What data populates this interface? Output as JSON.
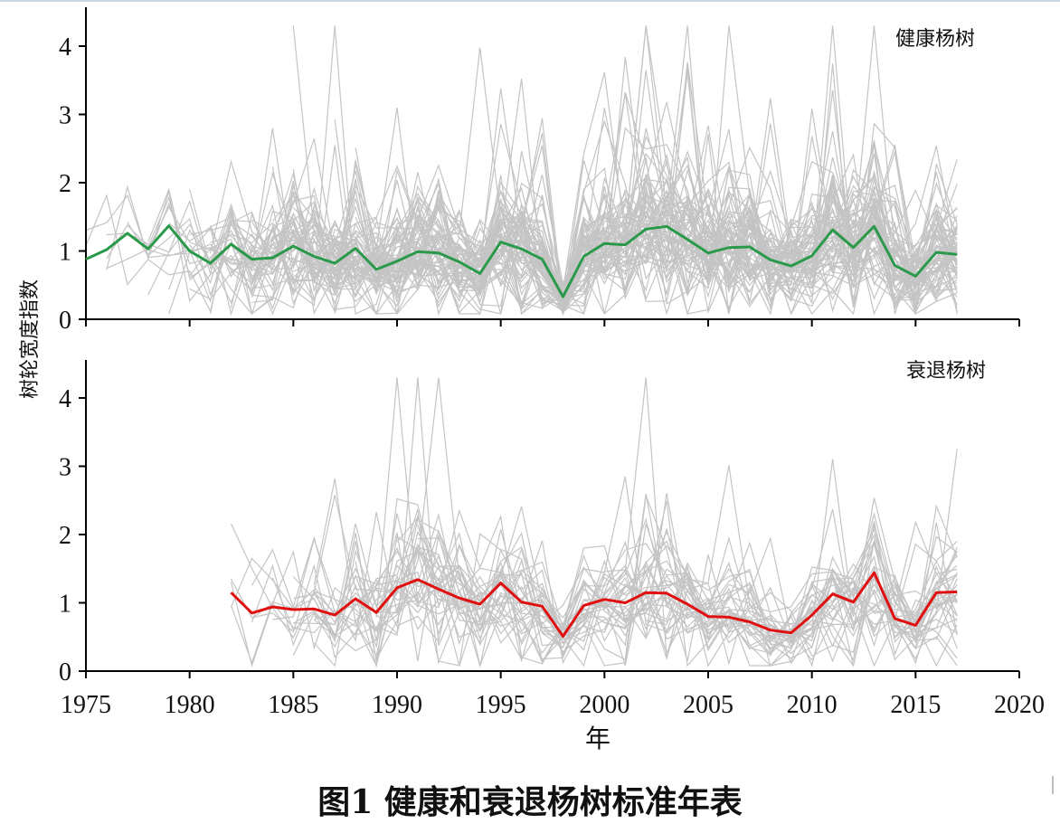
{
  "caption": "图1  健康和衰退杨树标准年表",
  "colors": {
    "background_series": "#c4c4c4",
    "healthy_line": "#2a9a4a",
    "declining_line": "#e01010",
    "axis": "#000000"
  },
  "chart_data": [
    {
      "type": "line",
      "panel": "top",
      "title": "健康杨树",
      "xlabel": "",
      "ylabel": "树轮宽度指数",
      "xlim": [
        1975,
        2020
      ],
      "ylim": [
        0,
        4.5
      ],
      "xticks": [
        1975,
        1980,
        1985,
        1990,
        1995,
        2000,
        2005,
        2010,
        2015,
        2020
      ],
      "yticks": [
        0,
        1,
        2,
        3,
        4
      ],
      "grid": false,
      "series": [
        {
          "role": "standard chronology",
          "x": [
            1975,
            1976,
            1977,
            1978,
            1979,
            1980,
            1981,
            1982,
            1983,
            1984,
            1985,
            1986,
            1987,
            1988,
            1989,
            1990,
            1991,
            1992,
            1993,
            1994,
            1995,
            1996,
            1997,
            1998,
            1999,
            2000,
            2001,
            2002,
            2003,
            2004,
            2005,
            2006,
            2007,
            2008,
            2009,
            2010,
            2011,
            2012,
            2013,
            2014,
            2015,
            2016,
            2017
          ],
          "values": [
            0.88,
            1.02,
            1.26,
            1.03,
            1.37,
            1.0,
            0.82,
            1.1,
            0.88,
            0.9,
            1.07,
            0.92,
            0.82,
            1.04,
            0.73,
            0.85,
            0.99,
            0.97,
            0.84,
            0.67,
            1.13,
            1.03,
            0.88,
            0.33,
            0.92,
            1.11,
            1.09,
            1.32,
            1.36,
            1.17,
            0.97,
            1.05,
            1.06,
            0.87,
            0.78,
            0.93,
            1.31,
            1.05,
            1.36,
            0.79,
            0.63,
            0.98,
            0.95
          ]
        }
      ]
    },
    {
      "type": "line",
      "panel": "bottom",
      "title": "衰退杨树",
      "xlabel": "年",
      "ylabel": "树轮宽度指数",
      "xlim": [
        1975,
        2020
      ],
      "ylim": [
        0,
        4.5
      ],
      "xticks": [
        1975,
        1980,
        1985,
        1990,
        1995,
        2000,
        2005,
        2010,
        2015,
        2020
      ],
      "yticks": [
        0,
        1,
        2,
        3,
        4
      ],
      "grid": false,
      "series": [
        {
          "role": "standard chronology",
          "x": [
            1982,
            1983,
            1984,
            1985,
            1986,
            1987,
            1988,
            1989,
            1990,
            1991,
            1992,
            1993,
            1994,
            1995,
            1996,
            1997,
            1998,
            1999,
            2000,
            2001,
            2002,
            2003,
            2004,
            2005,
            2006,
            2007,
            2008,
            2009,
            2010,
            2011,
            2012,
            2013,
            2014,
            2015,
            2016,
            2017
          ],
          "values": [
            1.15,
            0.85,
            0.94,
            0.9,
            0.91,
            0.82,
            1.06,
            0.86,
            1.22,
            1.34,
            1.2,
            1.07,
            0.98,
            1.29,
            1.01,
            0.95,
            0.51,
            0.96,
            1.05,
            1.0,
            1.15,
            1.14,
            0.98,
            0.8,
            0.79,
            0.72,
            0.6,
            0.56,
            0.82,
            1.13,
            1.01,
            1.44,
            0.77,
            0.67,
            1.15,
            1.16
          ]
        }
      ]
    }
  ]
}
